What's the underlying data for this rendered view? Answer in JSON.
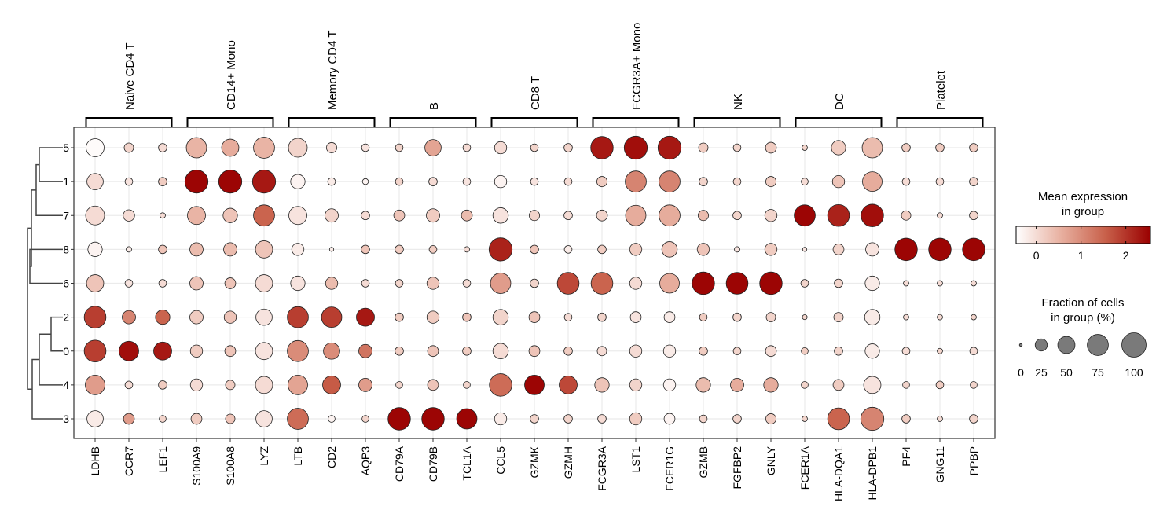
{
  "chart_data": {
    "type": "scatter",
    "subtype": "dotplot",
    "title": "",
    "groups": [
      {
        "name": "Naive CD4 T",
        "genes": [
          "LDHB",
          "CCR7",
          "LEF1"
        ]
      },
      {
        "name": "CD14+ Mono",
        "genes": [
          "S100A9",
          "S100A8",
          "LYZ"
        ]
      },
      {
        "name": "Memory CD4 T",
        "genes": [
          "LTB",
          "CD2",
          "AQP3"
        ]
      },
      {
        "name": "B",
        "genes": [
          "CD79A",
          "CD79B",
          "TCL1A"
        ]
      },
      {
        "name": "CD8 T",
        "genes": [
          "CCL5",
          "GZMK",
          "GZMH"
        ]
      },
      {
        "name": "FCGR3A+ Mono",
        "genes": [
          "FCGR3A",
          "LST1",
          "FCER1G"
        ]
      },
      {
        "name": "NK",
        "genes": [
          "GZMB",
          "FGFBP2",
          "GNLY"
        ]
      },
      {
        "name": "DC",
        "genes": [
          "FCER1A",
          "HLA-DQA1",
          "HLA-DPB1"
        ]
      },
      {
        "name": "Platelet",
        "genes": [
          "PF4",
          "GNG11",
          "PPBP"
        ]
      }
    ],
    "genes": [
      "LDHB",
      "CCR7",
      "LEF1",
      "S100A9",
      "S100A8",
      "LYZ",
      "LTB",
      "CD2",
      "AQP3",
      "CD79A",
      "CD79B",
      "TCL1A",
      "CCL5",
      "GZMK",
      "GZMH",
      "FCGR3A",
      "LST1",
      "FCER1G",
      "GZMB",
      "FGFBP2",
      "GNLY",
      "FCER1A",
      "HLA-DQA1",
      "HLA-DPB1",
      "PF4",
      "GNG11",
      "PPBP"
    ],
    "clusters": [
      "5",
      "1",
      "7",
      "8",
      "6",
      "2",
      "0",
      "4",
      "3"
    ],
    "fraction_pct": [
      [
        55,
        15,
        12,
        70,
        50,
        75,
        60,
        18,
        10,
        10,
        45,
        10,
        25,
        10,
        12,
        85,
        90,
        90,
        15,
        10,
        20,
        5,
        35,
        70,
        12,
        12,
        12
      ],
      [
        45,
        10,
        12,
        90,
        90,
        90,
        35,
        10,
        6,
        10,
        12,
        10,
        25,
        10,
        10,
        18,
        75,
        75,
        12,
        10,
        18,
        8,
        25,
        65,
        10,
        10,
        12
      ],
      [
        60,
        22,
        5,
        55,
        35,
        75,
        55,
        30,
        12,
        20,
        30,
        20,
        40,
        18,
        12,
        20,
        70,
        75,
        18,
        12,
        25,
        75,
        80,
        85,
        15,
        5,
        12
      ],
      [
        35,
        5,
        12,
        30,
        30,
        50,
        25,
        3,
        12,
        12,
        10,
        5,
        90,
        12,
        10,
        12,
        25,
        40,
        25,
        5,
        25,
        3,
        20,
        30,
        85,
        85,
        85
      ],
      [
        50,
        10,
        10,
        30,
        20,
        50,
        35,
        25,
        10,
        10,
        25,
        10,
        70,
        12,
        80,
        80,
        25,
        65,
        85,
        80,
        85,
        10,
        12,
        35,
        5,
        5,
        5
      ],
      [
        80,
        30,
        35,
        30,
        25,
        45,
        75,
        70,
        55,
        12,
        25,
        12,
        40,
        20,
        10,
        12,
        20,
        20,
        10,
        12,
        15,
        4,
        15,
        40,
        5,
        5,
        5
      ],
      [
        80,
        65,
        55,
        25,
        20,
        50,
        75,
        45,
        30,
        12,
        20,
        12,
        40,
        20,
        12,
        15,
        25,
        25,
        12,
        10,
        20,
        8,
        12,
        35,
        10,
        5,
        10
      ],
      [
        65,
        10,
        12,
        25,
        15,
        50,
        65,
        55,
        30,
        8,
        20,
        8,
        85,
        65,
        55,
        35,
        25,
        25,
        35,
        30,
        35,
        8,
        20,
        50,
        8,
        10,
        8
      ],
      [
        45,
        20,
        8,
        20,
        15,
        45,
        75,
        8,
        8,
        85,
        85,
        70,
        25,
        12,
        12,
        12,
        25,
        20,
        10,
        12,
        18,
        5,
        80,
        90,
        12,
        5,
        12
      ]
    ],
    "mean_expression": [
      [
        -0.4,
        0.1,
        0.0,
        0.5,
        0.6,
        0.5,
        0.1,
        0.0,
        -0.1,
        0.1,
        0.7,
        0.0,
        0.0,
        0.1,
        0.1,
        2.3,
        2.4,
        2.3,
        0.2,
        0.1,
        0.2,
        0.1,
        0.2,
        0.4,
        0.2,
        0.2,
        0.2
      ],
      [
        0.0,
        -0.1,
        0.2,
        2.5,
        2.5,
        2.3,
        -0.3,
        -0.2,
        -0.3,
        0.1,
        0.0,
        -0.1,
        -0.3,
        -0.1,
        0.0,
        0.2,
        1.1,
        1.1,
        0.1,
        0.1,
        0.2,
        0.0,
        0.3,
        0.6,
        0.0,
        0.0,
        0.1
      ],
      [
        0.0,
        0.0,
        0.0,
        0.5,
        0.3,
        1.5,
        -0.1,
        0.1,
        0.0,
        0.3,
        0.2,
        0.4,
        -0.1,
        0.1,
        0.0,
        0.1,
        0.6,
        0.6,
        0.4,
        0.1,
        0.1,
        2.5,
        2.2,
        2.4,
        0.2,
        0.0,
        0.1
      ],
      [
        -0.3,
        -0.2,
        0.3,
        0.4,
        0.4,
        0.3,
        -0.2,
        -0.2,
        0.3,
        0.2,
        0.2,
        0.0,
        2.2,
        0.3,
        -0.2,
        0.2,
        0.2,
        0.3,
        0.3,
        -0.1,
        0.2,
        -0.1,
        0.1,
        -0.1,
        2.5,
        2.5,
        2.5
      ],
      [
        0.3,
        -0.1,
        0.0,
        0.3,
        0.3,
        0.0,
        -0.1,
        0.4,
        0.0,
        0.1,
        0.3,
        0.0,
        0.8,
        0.1,
        1.8,
        1.5,
        0.0,
        0.6,
        2.5,
        2.5,
        2.5,
        0.1,
        0.1,
        -0.2,
        0.0,
        0.0,
        0.0
      ],
      [
        1.9,
        1.1,
        1.5,
        0.2,
        0.3,
        -0.1,
        1.9,
        1.9,
        2.3,
        0.2,
        0.2,
        0.3,
        0.1,
        0.3,
        0.0,
        0.1,
        -0.1,
        -0.2,
        0.2,
        0.1,
        0.1,
        0.1,
        0.1,
        -0.2,
        0.0,
        0.0,
        0.1
      ],
      [
        1.9,
        2.4,
        2.3,
        0.2,
        0.3,
        -0.1,
        1.0,
        1.0,
        1.3,
        0.2,
        0.3,
        0.2,
        0.0,
        0.3,
        0.2,
        0.0,
        0.0,
        -0.2,
        0.2,
        0.1,
        0.0,
        0.2,
        0.1,
        -0.2,
        0.0,
        0.1,
        0.0
      ],
      [
        0.8,
        0.0,
        0.2,
        0.0,
        0.2,
        0.0,
        0.7,
        1.6,
        0.8,
        0.1,
        0.3,
        0.1,
        1.4,
        2.5,
        1.8,
        0.3,
        0.1,
        -0.3,
        0.4,
        0.6,
        0.6,
        0.1,
        0.2,
        -0.1,
        0.1,
        0.2,
        0.1
      ],
      [
        -0.2,
        0.8,
        0.1,
        0.2,
        0.3,
        -0.1,
        1.4,
        -0.3,
        0.1,
        2.5,
        2.5,
        2.5,
        -0.2,
        0.1,
        0.1,
        0.0,
        0.2,
        -0.3,
        0.1,
        0.1,
        0.2,
        0.1,
        1.5,
        1.1,
        0.2,
        0.0,
        0.1
      ]
    ],
    "dendrogram_order": [
      "5",
      "1",
      "7",
      "8",
      "6",
      "2",
      "0",
      "4",
      "3"
    ],
    "color_scale": {
      "title": [
        "Mean expression",
        "in group"
      ],
      "min": -0.45,
      "max": 2.55,
      "ticks": [
        0,
        1,
        2
      ],
      "tick_labels": [
        "0",
        "1",
        "2"
      ],
      "colors": [
        "#ffffff",
        "#e8b0a0",
        "#c8604a",
        "#9a0000"
      ]
    },
    "size_scale": {
      "title": [
        "Fraction of cells",
        "in group (%)"
      ],
      "values": [
        0,
        25,
        50,
        75,
        100
      ],
      "labels": [
        "0",
        "25",
        "50",
        "75",
        "100"
      ],
      "color": "#7a7a7a"
    },
    "grid": true,
    "legend_position": "right"
  }
}
